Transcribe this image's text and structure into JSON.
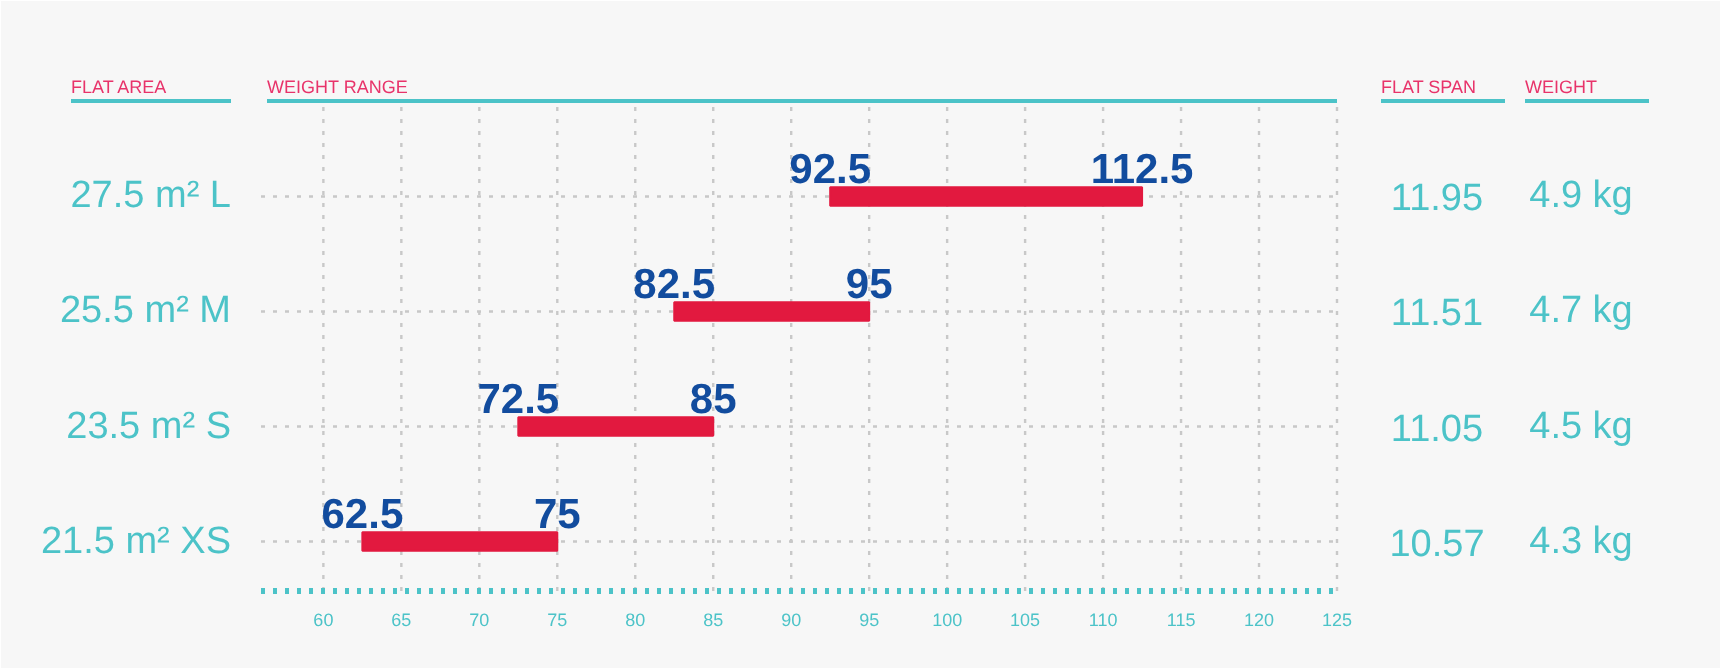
{
  "chart_data": {
    "type": "bar",
    "orientation": "horizontal",
    "xlabel": "WEIGHT RANGE",
    "ylabel": "FLAT AREA",
    "categories": [
      "27.5 m² L",
      "25.5 m² M",
      "23.5 m² S",
      "21.5 m² XS"
    ],
    "base": [
      92.5,
      82.5,
      72.5,
      62.5
    ],
    "values": [
      20,
      12.5,
      12.5,
      12.5
    ],
    "color": "#e2193f",
    "xlim": [
      56,
      125
    ],
    "xticks": [
      60,
      65,
      70,
      75,
      80,
      85,
      90,
      95,
      100,
      105,
      110,
      115,
      120,
      125
    ],
    "grid": true,
    "tick_labels": "x",
    "annotations": [
      "FLAT SPAN",
      "11.95",
      "11.51",
      "11.05",
      "10.57",
      "WEIGHT",
      "4.9 kg",
      "4.7 kg",
      "4.5 kg",
      "4.3 kg",
      "92.5",
      "112.5",
      "82.5",
      "95",
      "72.5",
      "85",
      "62.5",
      "75"
    ]
  }
}
